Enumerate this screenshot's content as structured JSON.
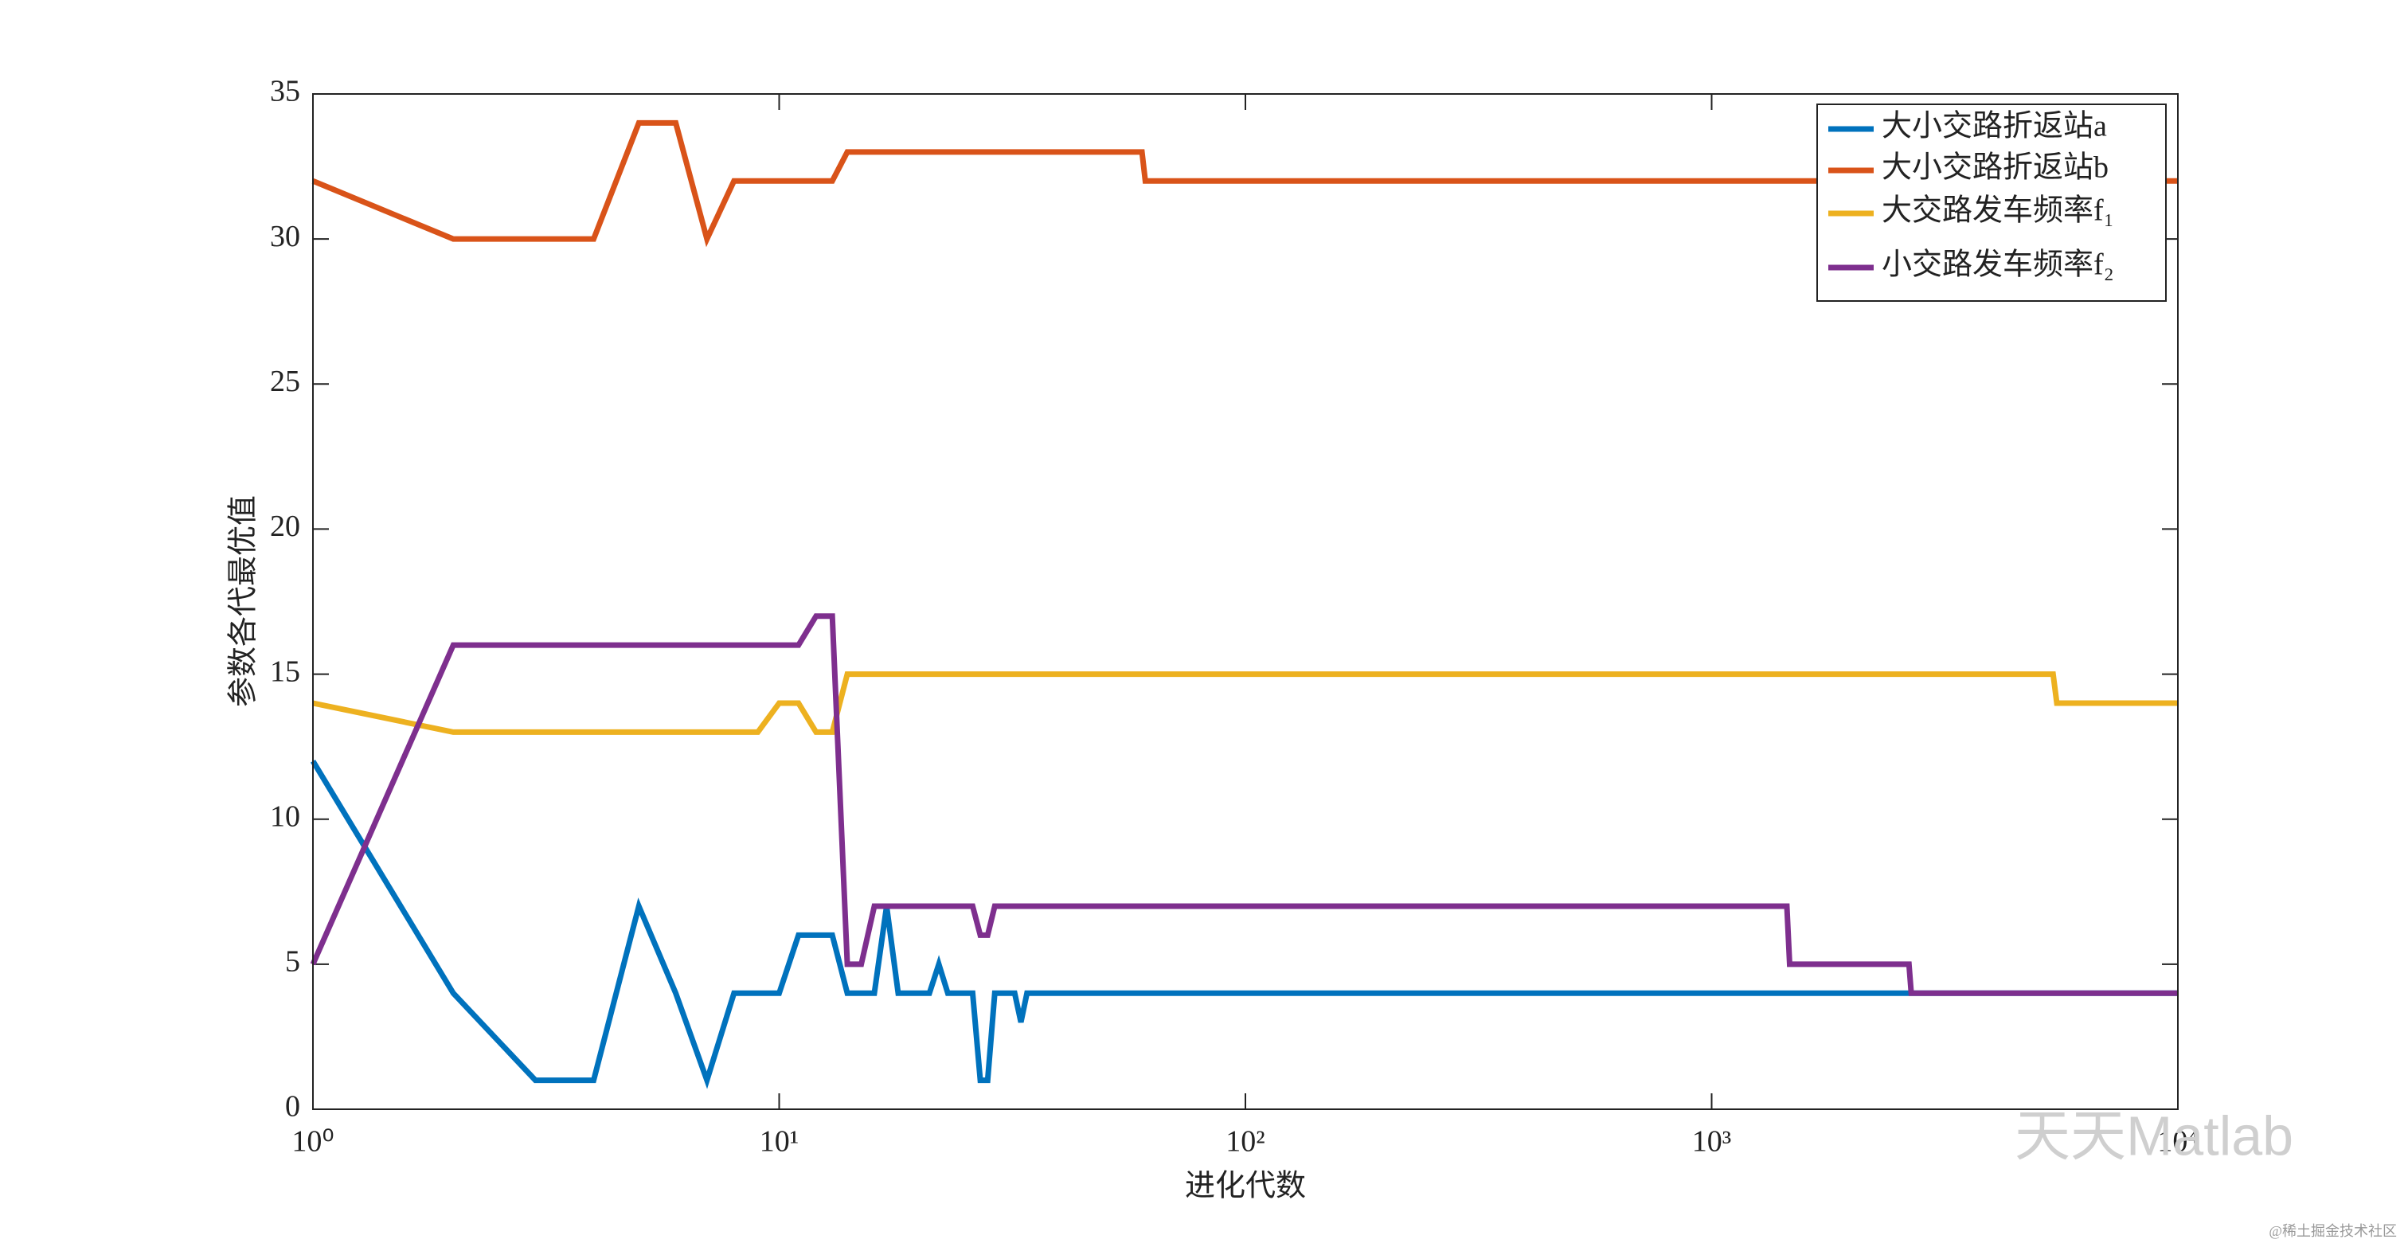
{
  "chart_data": {
    "type": "line",
    "x_label": "进化代数",
    "y_label": "参数各代最优值",
    "x_scale": "log",
    "xlim": [
      1,
      10000
    ],
    "xticks": [
      {
        "value": 1,
        "label": "10⁰"
      },
      {
        "value": 10,
        "label": "10¹"
      },
      {
        "value": 100,
        "label": "10²"
      },
      {
        "value": 1000,
        "label": "10³"
      },
      {
        "value": 10000,
        "label": "10⁴"
      }
    ],
    "ylim": [
      0,
      35
    ],
    "yticks": [
      0,
      5,
      10,
      15,
      20,
      25,
      30,
      35
    ],
    "legend_position": "upper-right",
    "series": [
      {
        "name": "大小交路折返站a",
        "color": "#0072bd",
        "x": [
          1,
          2,
          3,
          4,
          5,
          6,
          7,
          8,
          10,
          11,
          13,
          14,
          16,
          17,
          18,
          21,
          22,
          23,
          26,
          27,
          28,
          29,
          32,
          33,
          34,
          10000
        ],
        "values": [
          12,
          4,
          1,
          1,
          7,
          4,
          1,
          4,
          4,
          6,
          6,
          4,
          4,
          7,
          4,
          4,
          5,
          4,
          4,
          1,
          1,
          4,
          4,
          3,
          4,
          4
        ]
      },
      {
        "name": "大小交路折返站b",
        "color": "#d95319",
        "x": [
          1,
          2,
          4,
          5,
          6,
          7,
          8,
          13,
          14,
          60,
          61,
          10000
        ],
        "values": [
          32,
          30,
          30,
          34,
          34,
          30,
          32,
          32,
          33,
          33,
          32,
          32
        ]
      },
      {
        "name": "大交路发车频率f₁",
        "color": "#edb120",
        "x": [
          1,
          2,
          9,
          10,
          11,
          12,
          13,
          14,
          5400,
          5500,
          10000
        ],
        "values": [
          14,
          13,
          13,
          14,
          14,
          13,
          13,
          15,
          15,
          14,
          14
        ]
      },
      {
        "name": "小交路发车频率f₂",
        "color": "#7e2f8e",
        "x": [
          1,
          2,
          11,
          12,
          13,
          14,
          15,
          16,
          26,
          27,
          28,
          29,
          1450,
          1470,
          2650,
          2680,
          10000
        ],
        "values": [
          5,
          16,
          16,
          17,
          17,
          5,
          5,
          7,
          7,
          6,
          6,
          7,
          7,
          5,
          5,
          4,
          4
        ]
      }
    ],
    "annotations": [
      "天天Matlab",
      "@稀土掘金技术社区"
    ]
  }
}
